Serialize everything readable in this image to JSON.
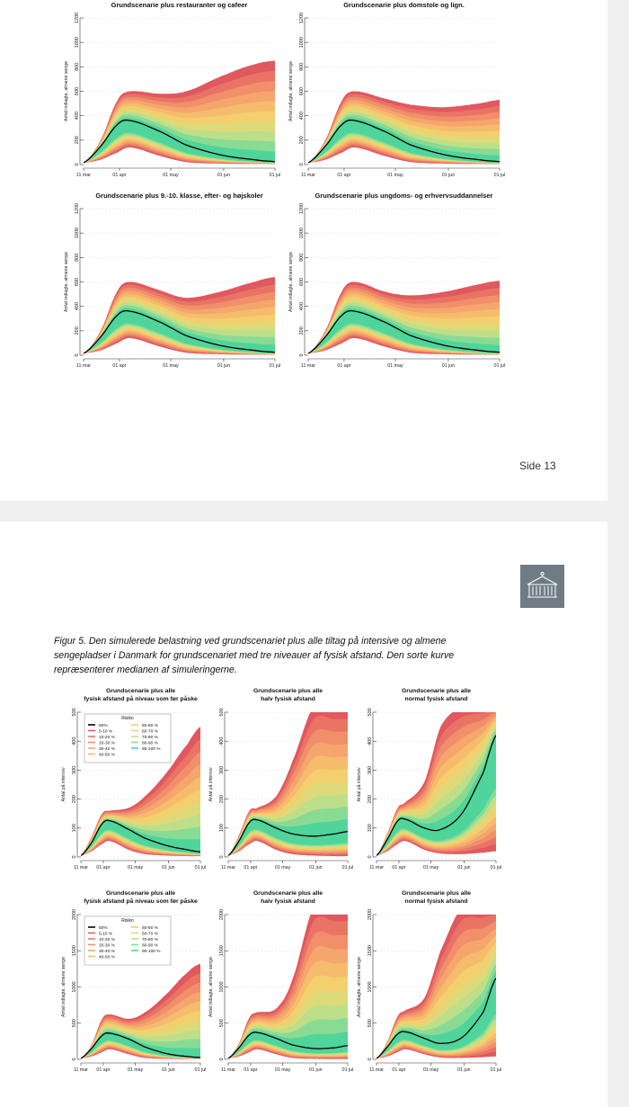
{
  "page_number": "Side 13",
  "caption": "Figur 5. Den simulerede belastning ved grundscenariet plus alle tiltag på intensive og almene sengepladser i Danmark for grundscenariet med tre niveauer af fysisk afstand. Den sorte kurve repræsenterer medianen af simuleringerne.",
  "logo_icon": "building-icon",
  "colors": {
    "band_outer": "#e1585f",
    "band_inner": "#4fd59b",
    "median": "#000000",
    "grid": "#dddddd"
  },
  "legend": {
    "title": "Risiko",
    "median_label": "50%",
    "risk_bands": [
      "5-10 %",
      "10-20 %",
      "20-30 %",
      "30-40 %",
      "40-50 %",
      "50-60 %",
      "60-70 %",
      "70-80 %",
      "80-90 %",
      "90-100 %"
    ]
  },
  "chart_data": [
    {
      "type": "area",
      "title": "Grundscenarie plus restauranter og cafeer",
      "ylabel": "Antal indlagte, almene senge",
      "ylim": [
        0,
        1200
      ],
      "yticks": [
        "0",
        "200",
        "400",
        "600",
        "800",
        "1000",
        "1200"
      ],
      "xticks": [
        "11 mar",
        "01 apr",
        "01 may",
        "01 jun",
        "01 jul"
      ],
      "x_days": [
        0,
        10,
        20,
        27,
        45,
        60,
        80,
        100,
        112
      ],
      "median": [
        15,
        150,
        330,
        360,
        270,
        160,
        80,
        40,
        25
      ],
      "upper_envelope": [
        15,
        200,
        530,
        600,
        580,
        600,
        720,
        820,
        850
      ],
      "lower_envelope": [
        15,
        40,
        100,
        140,
        70,
        20,
        8,
        5,
        5
      ]
    },
    {
      "type": "area",
      "title": "Grundscenarie plus domstole og lign.",
      "ylabel": "Antal indlagte, almene senge",
      "ylim": [
        0,
        1200
      ],
      "yticks": [
        "0",
        "200",
        "400",
        "600",
        "800",
        "1000",
        "1200"
      ],
      "xticks": [
        "11 mar",
        "01 apr",
        "01 may",
        "01 jun",
        "01 jul"
      ],
      "x_days": [
        0,
        10,
        20,
        27,
        45,
        60,
        80,
        100,
        112
      ],
      "median": [
        15,
        150,
        330,
        360,
        270,
        160,
        80,
        40,
        25
      ],
      "upper_envelope": [
        15,
        200,
        530,
        600,
        540,
        490,
        470,
        500,
        530
      ],
      "lower_envelope": [
        15,
        40,
        100,
        140,
        70,
        20,
        8,
        5,
        5
      ]
    },
    {
      "type": "area",
      "title": "Grundscenarie plus 9.-10. klasse, efter- og højskoler",
      "ylabel": "Antal indlagte, almene senge",
      "ylim": [
        0,
        1200
      ],
      "yticks": [
        "0",
        "200",
        "400",
        "600",
        "800",
        "1000",
        "1200"
      ],
      "xticks": [
        "11 mar",
        "01 apr",
        "01 may",
        "01 jun",
        "01 jul"
      ],
      "x_days": [
        0,
        10,
        20,
        27,
        45,
        60,
        80,
        100,
        112
      ],
      "median": [
        15,
        150,
        330,
        360,
        270,
        160,
        80,
        40,
        25
      ],
      "upper_envelope": [
        15,
        200,
        530,
        600,
        530,
        470,
        520,
        600,
        640
      ],
      "lower_envelope": [
        15,
        40,
        100,
        140,
        70,
        20,
        8,
        5,
        5
      ]
    },
    {
      "type": "area",
      "title": "Grundscenarie plus ungdoms- og erhvervsuddannelser",
      "ylabel": "Antal indlagte, almene senge",
      "ylim": [
        0,
        1200
      ],
      "yticks": [
        "0",
        "200",
        "400",
        "600",
        "800",
        "1000",
        "1200"
      ],
      "xticks": [
        "11 mar",
        "01 apr",
        "01 may",
        "01 jun",
        "01 jul"
      ],
      "x_days": [
        0,
        10,
        20,
        27,
        45,
        60,
        80,
        100,
        112
      ],
      "median": [
        15,
        150,
        330,
        360,
        270,
        160,
        80,
        40,
        25
      ],
      "upper_envelope": [
        15,
        200,
        530,
        600,
        520,
        490,
        520,
        580,
        610
      ],
      "lower_envelope": [
        15,
        40,
        100,
        140,
        70,
        20,
        8,
        5,
        5
      ]
    },
    {
      "type": "area",
      "title": "Grundscenarie plus alle\nfysisk afstand på niveau som før påske",
      "ylabel": "Antal på intensiv",
      "ylim": [
        0,
        500
      ],
      "yticks": [
        "0",
        "100",
        "200",
        "300",
        "400",
        "500"
      ],
      "xticks": [
        "11 mar",
        "01 apr",
        "01 may",
        "01 jun",
        "01 jul"
      ],
      "has_legend": true,
      "x_days": [
        0,
        10,
        20,
        27,
        45,
        60,
        80,
        100,
        112
      ],
      "median": [
        5,
        50,
        115,
        125,
        95,
        65,
        40,
        25,
        18
      ],
      "upper_envelope": [
        5,
        70,
        150,
        160,
        170,
        210,
        290,
        390,
        450
      ],
      "lower_envelope": [
        5,
        20,
        45,
        55,
        25,
        10,
        5,
        3,
        3
      ]
    },
    {
      "type": "area",
      "title": "Grundscenarie plus alle\nhalv fysisk afstand",
      "ylabel": "Antal på intensiv",
      "ylim": [
        0,
        500
      ],
      "yticks": [
        "0",
        "100",
        "200",
        "300",
        "400",
        "500"
      ],
      "xticks": [
        "11 mar",
        "01 apr",
        "01 may",
        "01 jun",
        "01 jul"
      ],
      "x_days": [
        0,
        10,
        20,
        27,
        45,
        60,
        80,
        100,
        112
      ],
      "median": [
        5,
        55,
        120,
        128,
        100,
        80,
        72,
        80,
        88
      ],
      "upper_envelope": [
        5,
        75,
        160,
        170,
        210,
        330,
        520,
        520,
        520
      ],
      "lower_envelope": [
        5,
        20,
        45,
        55,
        25,
        10,
        5,
        3,
        3
      ]
    },
    {
      "type": "area",
      "title": "Grundscenarie plus alle\nnormal fysisk afstand",
      "ylabel": "Antal på intensiv",
      "ylim": [
        0,
        500
      ],
      "yticks": [
        "0",
        "100",
        "200",
        "300",
        "400",
        "500"
      ],
      "xticks": [
        "11 mar",
        "01 apr",
        "01 may",
        "01 jun",
        "01 jul"
      ],
      "x_days": [
        0,
        10,
        20,
        27,
        45,
        60,
        80,
        100,
        112
      ],
      "median": [
        5,
        60,
        125,
        130,
        100,
        95,
        150,
        290,
        420
      ],
      "upper_envelope": [
        5,
        80,
        170,
        190,
        260,
        450,
        520,
        520,
        520
      ],
      "lower_envelope": [
        5,
        20,
        45,
        55,
        25,
        12,
        10,
        15,
        20
      ]
    },
    {
      "type": "area",
      "title": "Grundscenarie plus alle\nfysisk afstand på niveau som før påske",
      "ylabel": "Antal indlagte, almene senge",
      "ylim": [
        0,
        2000
      ],
      "yticks": [
        "0",
        "500",
        "1000",
        "1500",
        "2000"
      ],
      "xticks": [
        "11 mar",
        "01 apr",
        "01 may",
        "01 jun",
        "01 jul"
      ],
      "has_legend": true,
      "x_days": [
        0,
        10,
        20,
        27,
        45,
        60,
        80,
        100,
        112
      ],
      "median": [
        15,
        150,
        330,
        360,
        280,
        170,
        80,
        40,
        25
      ],
      "upper_envelope": [
        15,
        200,
        560,
        620,
        560,
        650,
        900,
        1200,
        1320
      ],
      "lower_envelope": [
        15,
        40,
        100,
        140,
        70,
        20,
        8,
        5,
        5
      ]
    },
    {
      "type": "area",
      "title": "Grundscenarie plus alle\nhalv fysisk afstand",
      "ylabel": "Antal indlagte, almene senge",
      "ylim": [
        0,
        2000
      ],
      "yticks": [
        "0",
        "500",
        "1000",
        "1500",
        "2000"
      ],
      "xticks": [
        "11 mar",
        "01 apr",
        "01 may",
        "01 jun",
        "01 jul"
      ],
      "x_days": [
        0,
        10,
        20,
        27,
        45,
        60,
        80,
        100,
        112
      ],
      "median": [
        15,
        160,
        340,
        370,
        290,
        200,
        150,
        160,
        190
      ],
      "upper_envelope": [
        15,
        220,
        580,
        650,
        700,
        1100,
        2100,
        2100,
        2100
      ],
      "lower_envelope": [
        15,
        40,
        100,
        140,
        70,
        20,
        8,
        5,
        5
      ]
    },
    {
      "type": "area",
      "title": "Grundscenarie plus alle\nnormal fysisk afstand",
      "ylabel": "Antal indlagte, almene senge",
      "ylim": [
        0,
        2000
      ],
      "yticks": [
        "0",
        "500",
        "1000",
        "1500",
        "2000"
      ],
      "xticks": [
        "11 mar",
        "01 apr",
        "01 may",
        "01 jun",
        "01 jul"
      ],
      "x_days": [
        0,
        10,
        20,
        27,
        45,
        60,
        80,
        100,
        112
      ],
      "median": [
        15,
        170,
        350,
        380,
        290,
        220,
        300,
        650,
        1120
      ],
      "upper_envelope": [
        15,
        240,
        600,
        680,
        850,
        1500,
        2100,
        2100,
        2100
      ],
      "lower_envelope": [
        15,
        40,
        100,
        140,
        70,
        25,
        20,
        30,
        40
      ]
    }
  ]
}
